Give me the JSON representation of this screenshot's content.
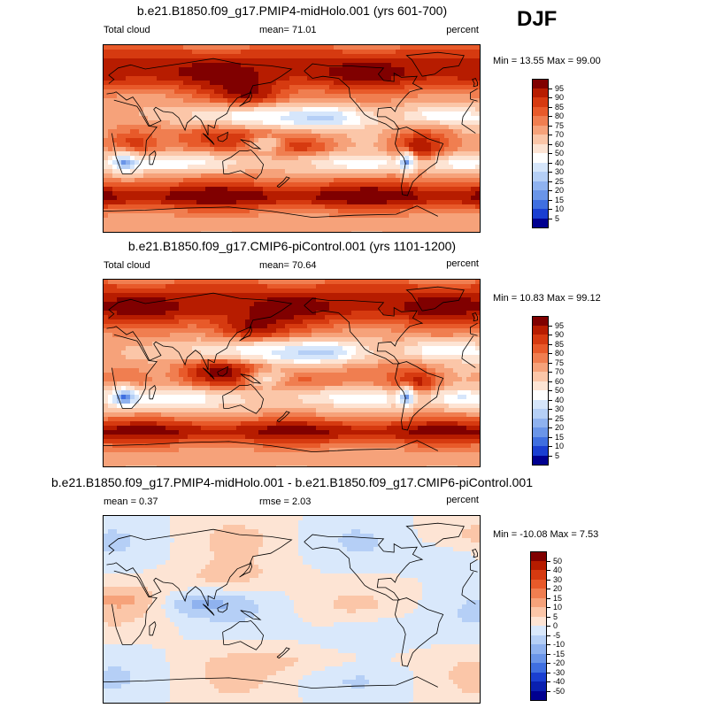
{
  "season": "DJF",
  "panels": [
    {
      "title": "b.e21.B1850.f09_g17.PMIP4-midHolo.001 (yrs 601-700)",
      "left_label": "Total cloud",
      "center_label": "mean=  71.01",
      "right_label": "percent",
      "minmax": "Min =  13.55 Max =  99.00",
      "map_kind": "field_a"
    },
    {
      "title": "b.e21.B1850.f09_g17.CMIP6-piControl.001 (yrs 1101-1200)",
      "left_label": "Total cloud",
      "center_label": "mean=  70.64",
      "right_label": "percent",
      "minmax": "Min =  10.83 Max =  99.12",
      "map_kind": "field_b"
    },
    {
      "title": "b.e21.B1850.f09_g17.PMIP4-midHolo.001 - b.e21.B1850.f09_g17.CMIP6-piControl.001",
      "left_label": "mean =   0.37",
      "center_label": "rmse =   2.03",
      "right_label": "percent",
      "minmax": "Min = -10.08 Max =   7.53",
      "map_kind": "diff"
    }
  ],
  "colorbars": {
    "field": {
      "labels": [
        "95",
        "90",
        "85",
        "80",
        "75",
        "70",
        "60",
        "50",
        "40",
        "30",
        "25",
        "20",
        "15",
        "10",
        "5"
      ],
      "colors": [
        "#800000",
        "#b71c00",
        "#d63a10",
        "#e85a2a",
        "#f07e50",
        "#f6a27a",
        "#fbc6a8",
        "#fde4d4",
        "#ffffff",
        "#d6e6fb",
        "#b5cff6",
        "#8fb2ef",
        "#6a95e8",
        "#3f6fe0",
        "#1a3fd1",
        "#000090"
      ]
    },
    "diff": {
      "labels": [
        "50",
        "40",
        "30",
        "20",
        "15",
        "10",
        "5",
        "0",
        "-5",
        "-10",
        "-15",
        "-20",
        "-30",
        "-40",
        "-50"
      ],
      "colors": [
        "#800000",
        "#b71c00",
        "#d63a10",
        "#e85a2a",
        "#f07e50",
        "#f6a27a",
        "#fbc6a8",
        "#fde4d4",
        "#d9e8fb",
        "#b5cff6",
        "#8fb2ef",
        "#6a95e8",
        "#3f6fe0",
        "#1a3fd1",
        "#0a20b0",
        "#000090"
      ]
    }
  },
  "chart_data": [
    {
      "type": "heatmap",
      "title": "b.e21.B1850.f09_g17.PMIP4-midHolo.001 (yrs 601-700)",
      "variable": "Total cloud",
      "units": "percent",
      "season": "DJF",
      "mean": 71.01,
      "min": 13.55,
      "max": 99.0,
      "contour_levels": [
        5,
        10,
        15,
        20,
        25,
        30,
        40,
        50,
        60,
        70,
        75,
        80,
        85,
        90,
        95
      ]
    },
    {
      "type": "heatmap",
      "title": "b.e21.B1850.f09_g17.CMIP6-piControl.001 (yrs 1101-1200)",
      "variable": "Total cloud",
      "units": "percent",
      "season": "DJF",
      "mean": 70.64,
      "min": 10.83,
      "max": 99.12,
      "contour_levels": [
        5,
        10,
        15,
        20,
        25,
        30,
        40,
        50,
        60,
        70,
        75,
        80,
        85,
        90,
        95
      ]
    },
    {
      "type": "heatmap",
      "title": "b.e21.B1850.f09_g17.PMIP4-midHolo.001 - b.e21.B1850.f09_g17.CMIP6-piControl.001",
      "units": "percent",
      "season": "DJF",
      "mean": 0.37,
      "rmse": 2.03,
      "min": -10.08,
      "max": 7.53,
      "contour_levels": [
        -50,
        -40,
        -30,
        -20,
        -15,
        -10,
        -5,
        0,
        5,
        10,
        15,
        20,
        30,
        40,
        50
      ]
    }
  ]
}
